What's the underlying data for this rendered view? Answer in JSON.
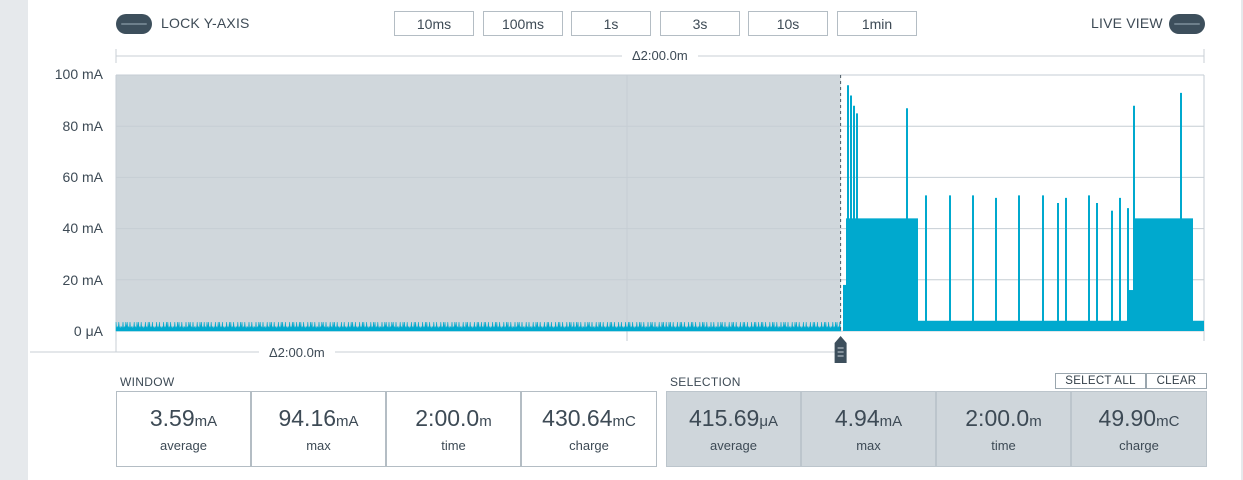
{
  "header": {
    "lock_y_axis_label": "LOCK Y-AXIS",
    "live_view_label": "LIVE VIEW",
    "time_buttons": [
      "10ms",
      "100ms",
      "1s",
      "3s",
      "10s",
      "1min"
    ]
  },
  "chart": {
    "top_delta": "Δ2:00.0m",
    "bottom_delta": "Δ2:00.0m",
    "y_ticks": [
      "100 mA",
      "80 mA",
      "60 mA",
      "40 mA",
      "20 mA",
      "0 μA"
    ]
  },
  "chart_data": {
    "type": "area",
    "title": "",
    "xlabel": "",
    "ylabel": "",
    "ylim_mA": [
      0,
      100
    ],
    "y_tick_values_mA": [
      0,
      20,
      40,
      60,
      80,
      100
    ],
    "grid": true,
    "series": [
      {
        "color": "#00a9ce",
        "description_points_mA": {
          "baseline_idle": 3.5,
          "active_plateau": 44,
          "peaks": [
            96,
            92,
            88,
            85,
            87,
            53,
            53,
            53,
            52,
            53,
            53,
            52,
            50,
            53,
            50,
            47,
            52,
            48,
            88,
            93
          ],
          "selection_baseline": 3.5
        }
      }
    ],
    "selection_shaded_fraction": [
      0.0,
      0.666
    ],
    "colors": {
      "trace": "#00a9ce",
      "selection_fill": "#d0d7dc",
      "grid": "#dde2e6"
    }
  },
  "window": {
    "label": "WINDOW",
    "stats": [
      {
        "value": "3.59",
        "unit": "mA",
        "caption": "average"
      },
      {
        "value": "94.16",
        "unit": "mA",
        "caption": "max"
      },
      {
        "value": "2:00.0",
        "unit": "m",
        "caption": "time"
      },
      {
        "value": "430.64",
        "unit": "mC",
        "caption": "charge"
      }
    ]
  },
  "selection": {
    "label": "SELECTION",
    "select_all_label": "SELECT ALL",
    "clear_label": "CLEAR",
    "stats": [
      {
        "value": "415.69",
        "unit": "μA",
        "caption": "average"
      },
      {
        "value": "4.94",
        "unit": "mA",
        "caption": "max"
      },
      {
        "value": "2:00.0",
        "unit": "m",
        "caption": "time"
      },
      {
        "value": "49.90",
        "unit": "mC",
        "caption": "charge"
      }
    ]
  }
}
